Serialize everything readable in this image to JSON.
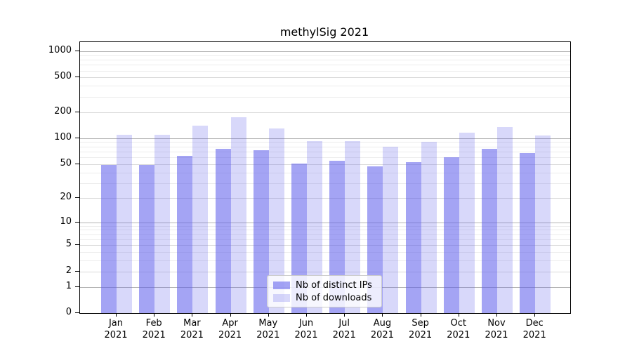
{
  "title": "methylSig 2021",
  "chart_data": {
    "type": "bar",
    "title": "methylSig 2021",
    "xlabel": "",
    "ylabel": "",
    "categories": [
      "Jan 2021",
      "Feb 2021",
      "Mar 2021",
      "Apr 2021",
      "May 2021",
      "Jun 2021",
      "Jul 2021",
      "Aug 2021",
      "Sep 2021",
      "Oct 2021",
      "Nov 2021",
      "Dec 2021"
    ],
    "series": [
      {
        "name": "Nb of distinct IPs",
        "color": "rgba(90,90,235,0.55)",
        "values": [
          49,
          49,
          62,
          75,
          72,
          51,
          55,
          47,
          53,
          60,
          75,
          67
        ]
      },
      {
        "name": "Nb of downloads",
        "color": "rgba(90,90,235,0.24)",
        "values": [
          109,
          109,
          139,
          174,
          130,
          93,
          93,
          80,
          91,
          116,
          134,
          107
        ]
      }
    ],
    "y_ticks": [
      0,
      1,
      2,
      5,
      10,
      20,
      50,
      100,
      200,
      500,
      1000
    ],
    "y_scale": "log1p",
    "ylim": [
      0,
      1500
    ],
    "grid": true,
    "legend_position": "bottom-center"
  }
}
